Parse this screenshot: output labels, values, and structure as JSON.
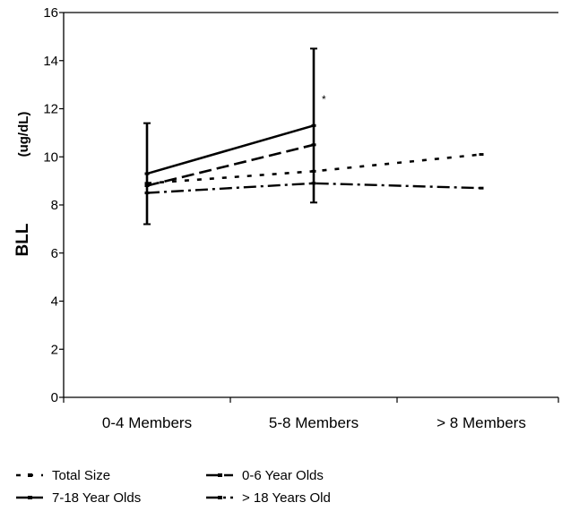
{
  "chart_data": {
    "type": "line",
    "title": "",
    "ylabel": "BLL",
    "ylabel_unit": "(ug/dL)",
    "xlabel": "",
    "ylim": [
      0,
      16
    ],
    "yticks": [
      0,
      2,
      4,
      6,
      8,
      10,
      12,
      14,
      16
    ],
    "categories": [
      "0-4 Members",
      "5-8 Members",
      "> 8 Members"
    ],
    "grid": false,
    "legend_position": "bottom-left",
    "series": [
      {
        "name": "Total Size",
        "values": [
          8.9,
          9.4,
          10.1
        ],
        "style": "dotted"
      },
      {
        "name": "0-6 Year Olds",
        "values": [
          8.8,
          10.5,
          null
        ],
        "style": "dashed"
      },
      {
        "name": "7-18 Year Olds",
        "values": [
          9.3,
          11.3,
          null
        ],
        "style": "solid",
        "error": [
          {
            "low": 7.2,
            "high": 11.4
          },
          {
            "low": 8.1,
            "high": 14.5
          },
          null
        ]
      },
      {
        "name": "> 18 Years Old",
        "values": [
          8.5,
          8.9,
          8.7
        ],
        "style": "dashdot"
      }
    ],
    "annotations": [
      {
        "text": "*",
        "category": "5-8 Members",
        "value": 12.4
      }
    ]
  }
}
